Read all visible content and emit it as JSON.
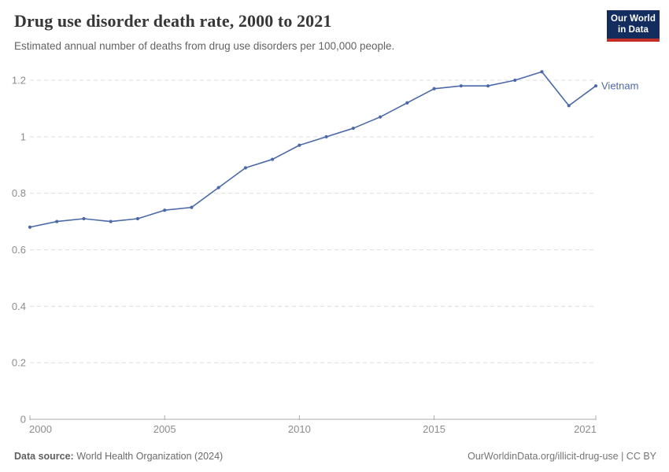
{
  "header": {
    "title": "Drug use disorder death rate, 2000 to 2021",
    "subtitle": "Estimated annual number of deaths from drug use disorders per 100,000 people.",
    "logo_line1": "Our World",
    "logo_line2": "in Data"
  },
  "chart_data": {
    "type": "line",
    "title": "Drug use disorder death rate, 2000 to 2021",
    "x": [
      2000,
      2001,
      2002,
      2003,
      2004,
      2005,
      2006,
      2007,
      2008,
      2009,
      2010,
      2011,
      2012,
      2013,
      2014,
      2015,
      2016,
      2017,
      2018,
      2019,
      2020,
      2021
    ],
    "series": [
      {
        "name": "Vietnam",
        "color": "#4b69a8",
        "values": [
          0.68,
          0.7,
          0.71,
          0.7,
          0.71,
          0.74,
          0.75,
          0.82,
          0.89,
          0.92,
          0.97,
          1.0,
          1.03,
          1.07,
          1.12,
          1.17,
          1.18,
          1.18,
          1.2,
          1.23,
          1.11,
          1.18
        ]
      }
    ],
    "xlabel": "",
    "ylabel": "",
    "xlim": [
      2000,
      2021
    ],
    "ylim": [
      0,
      1.2
    ],
    "x_ticks": [
      2000,
      2005,
      2010,
      2015,
      2021
    ],
    "x_tick_labels": [
      "2000",
      "2005",
      "2010",
      "2015",
      "2021"
    ],
    "y_ticks": [
      0,
      0.2,
      0.4,
      0.6,
      0.8,
      1,
      1.2
    ],
    "y_tick_labels": [
      "0",
      "0.2",
      "0.4",
      "0.6",
      "0.8",
      "1",
      "1.2"
    ],
    "grid": "horizontal-dashed",
    "legend_position": "end-of-line-label"
  },
  "footer": {
    "source_label": "Data source:",
    "source_value": " World Health Organization (2024)",
    "credit": "OurWorldinData.org/illicit-drug-use | CC BY"
  },
  "colors": {
    "series": "#4b69a8",
    "grid": "#dedede",
    "axis": "#ababab",
    "tick_text": "#8c8c8c",
    "logo_bg": "#132d5e",
    "logo_accent": "#c32e27"
  }
}
